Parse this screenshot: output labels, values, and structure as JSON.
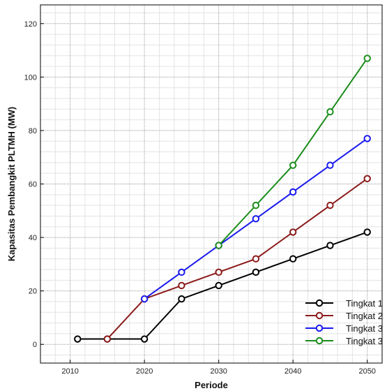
{
  "chart_data": {
    "type": "line",
    "title": "",
    "xlabel": "Periode",
    "ylabel": "Kapasitas Pembangkit PLTMH (MW)",
    "xlim": [
      2006,
      2052
    ],
    "ylim": [
      -7,
      127
    ],
    "x_ticks": [
      "2010",
      "2020",
      "2030",
      "2040",
      "2050"
    ],
    "y_ticks": [
      "0",
      "20",
      "40",
      "60",
      "80",
      "100",
      "120"
    ],
    "grid": true,
    "legend_position": "bottom-right",
    "series": [
      {
        "name": "Tingkat 1",
        "color": "#000000",
        "x": [
          2011,
          2015,
          2020,
          2025,
          2030,
          2035,
          2040,
          2045,
          2050
        ],
        "y": [
          2,
          2,
          2,
          17,
          22,
          27,
          32,
          37,
          42
        ]
      },
      {
        "name": "Tingkat 2",
        "color": "#8b1a1a",
        "x": [
          2015,
          2020,
          2025,
          2030,
          2035,
          2040,
          2045,
          2050
        ],
        "y": [
          2,
          17,
          22,
          27,
          32,
          42,
          52,
          62
        ]
      },
      {
        "name": "Tingkat 3",
        "color": "#1a1aee",
        "x": [
          2020,
          2025,
          2030,
          2035,
          2040,
          2045,
          2050
        ],
        "y": [
          17,
          27,
          37,
          47,
          57,
          67,
          77
        ]
      },
      {
        "name": "Tingkat 3",
        "color": "#1a8c1a",
        "x": [
          2030,
          2035,
          2040,
          2045,
          2050
        ],
        "y": [
          37,
          52,
          67,
          87,
          107
        ]
      }
    ]
  }
}
